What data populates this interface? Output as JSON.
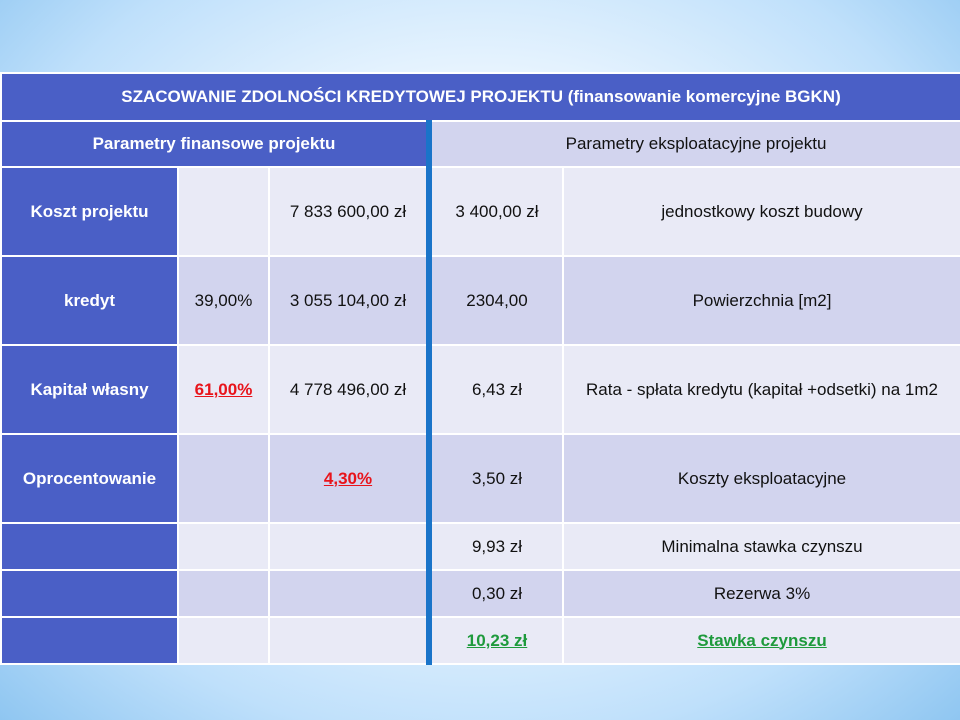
{
  "title": "SZACOWANIE ZDOLNOŚCI KREDYTOWEJ PROJEKTU (finansowanie  komercyjne BGKN)",
  "headers": {
    "left": "Parametry  finansowe  projektu",
    "right": "Parametry  eksploatacyjne  projektu"
  },
  "rows": [
    {
      "label": "Koszt  projektu",
      "pct": "",
      "amount": "7 833 600,00 zł",
      "value": "3 400,00 zł",
      "desc": "jednostkowy  koszt  budowy"
    },
    {
      "label": "kredyt",
      "pct": "39,00%",
      "amount": "3 055 104,00 zł",
      "value": "2304,00",
      "desc": "Powierzchnia  [m2]"
    },
    {
      "label": "Kapitał  własny",
      "pct": "61,00%",
      "amount": "4 778 496,00 zł",
      "value": "6,43 zł",
      "desc": "Rata  -  spłata kredytu  (kapitał +odsetki) na 1m2"
    },
    {
      "label": "Oprocentowanie",
      "pct": "",
      "amount": "4,30%",
      "value": "3,50 zł",
      "desc": "Koszty  eksploatacyjne"
    },
    {
      "label": "",
      "pct": "",
      "amount": "",
      "value": "9,93 zł",
      "desc": "Minimalna  stawka czynszu"
    },
    {
      "label": "",
      "pct": "",
      "amount": "",
      "value": "0,30 zł",
      "desc": "Rezerwa  3%"
    },
    {
      "label": "",
      "pct": "",
      "amount": "",
      "value": "10,23  zł",
      "desc": "Stawka  czynszu"
    }
  ],
  "colors": {
    "header_blue": "#4a5fc6",
    "row_light": "#d2d4ee",
    "row_lighter": "#e9eaf6",
    "separator": "#1a74c9",
    "highlight_red": "#e8141b",
    "highlight_green": "#1e9a3c"
  }
}
